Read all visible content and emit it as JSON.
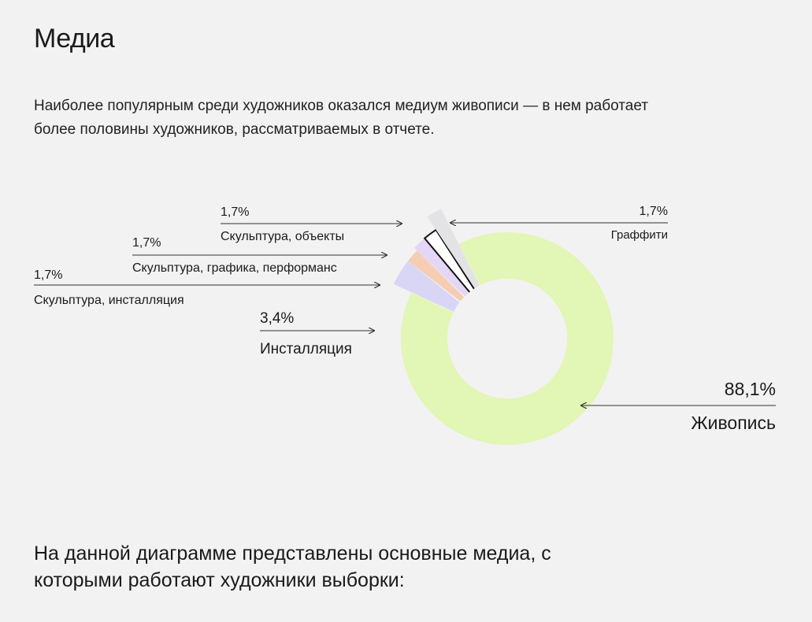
{
  "header": {
    "title": "Медиа",
    "subtitle": "Наиболее популярным среди художников оказался медиум живописи — в нем работает более половины художников, рассматриваемых в отчете."
  },
  "footer": {
    "text": "На данной диаграмме представлены основные медиа, с которыми работают художники выборки:"
  },
  "chart_data": {
    "type": "pie",
    "variant": "donut",
    "series": [
      {
        "name": "Живопись",
        "value": 88.1,
        "label": "88,1%",
        "color": "#e2f6b5"
      },
      {
        "name": "Инсталляция",
        "value": 3.4,
        "label": "3,4%",
        "color": "#d9d6f5"
      },
      {
        "name": "Скульптура, инсталляция",
        "value": 1.7,
        "label": "1,7%",
        "color": "#f5cdb2"
      },
      {
        "name": "Скульптура, графика, перформанс",
        "value": 1.7,
        "label": "1,7%",
        "color": "#e4d7f5"
      },
      {
        "name": "Скульптура, объекты",
        "value": 1.7,
        "label": "1,7%",
        "color": "#ffffff"
      },
      {
        "name": "Граффити",
        "value": 1.7,
        "label": "1,7%",
        "color": "#e3e3e6"
      }
    ],
    "legend": "inline-callouts"
  }
}
